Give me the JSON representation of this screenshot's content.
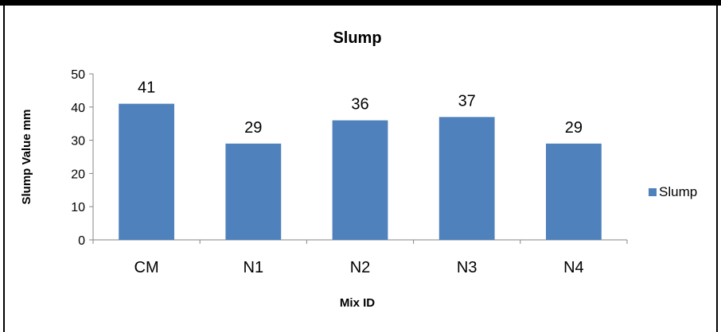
{
  "chart_data": {
    "type": "bar",
    "title": "Slump",
    "xlabel": "Mix ID",
    "ylabel": "Slump Value mm",
    "categories": [
      "CM",
      "N1",
      "N2",
      "N3",
      "N4"
    ],
    "series": [
      {
        "name": "Slump",
        "values": [
          41,
          29,
          36,
          37,
          29
        ]
      }
    ],
    "ylim": [
      0,
      50
    ],
    "yticks": [
      0,
      10,
      20,
      30,
      40,
      50
    ],
    "grid": false,
    "legend": "right",
    "colors": {
      "bar": "#4f81bd",
      "axis": "#868686"
    }
  }
}
